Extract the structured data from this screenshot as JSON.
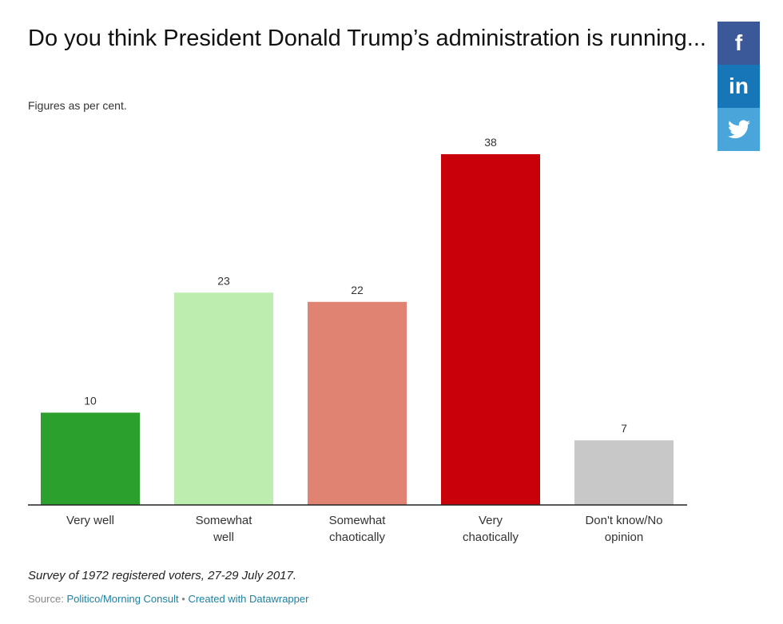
{
  "header": {
    "title": "Do you think President Donald Trump’s administration is running...",
    "subtitle": "Figures as per cent."
  },
  "footer": {
    "notes": "Survey of 1972 registered voters, 27-29 July 2017.",
    "source_label": "Source:",
    "source_link": "Politico/Morning Consult",
    "separator": "•",
    "credit_link": "Created with Datawrapper"
  },
  "social": {
    "facebook": "f",
    "linkedin": "in",
    "twitter": "twitter-bird"
  },
  "chart_data": {
    "type": "bar",
    "title": "Do you think President Donald Trump’s administration is running...",
    "subtitle": "Figures as per cent.",
    "xlabel": "",
    "ylabel": "",
    "ylim": [
      0,
      38
    ],
    "grid": false,
    "categories": [
      [
        "Very well"
      ],
      [
        "Somewhat",
        "well"
      ],
      [
        "Somewhat",
        "chaotically"
      ],
      [
        "Very",
        "chaotically"
      ],
      [
        "Don't know/No",
        "opinion"
      ]
    ],
    "values": [
      10,
      23,
      22,
      38,
      7
    ],
    "colors": [
      "#2ca02c",
      "#bdeeb0",
      "#e08373",
      "#c9000a",
      "#c8c8c8"
    ],
    "value_labels": [
      "10",
      "23",
      "22",
      "38",
      "7"
    ]
  }
}
